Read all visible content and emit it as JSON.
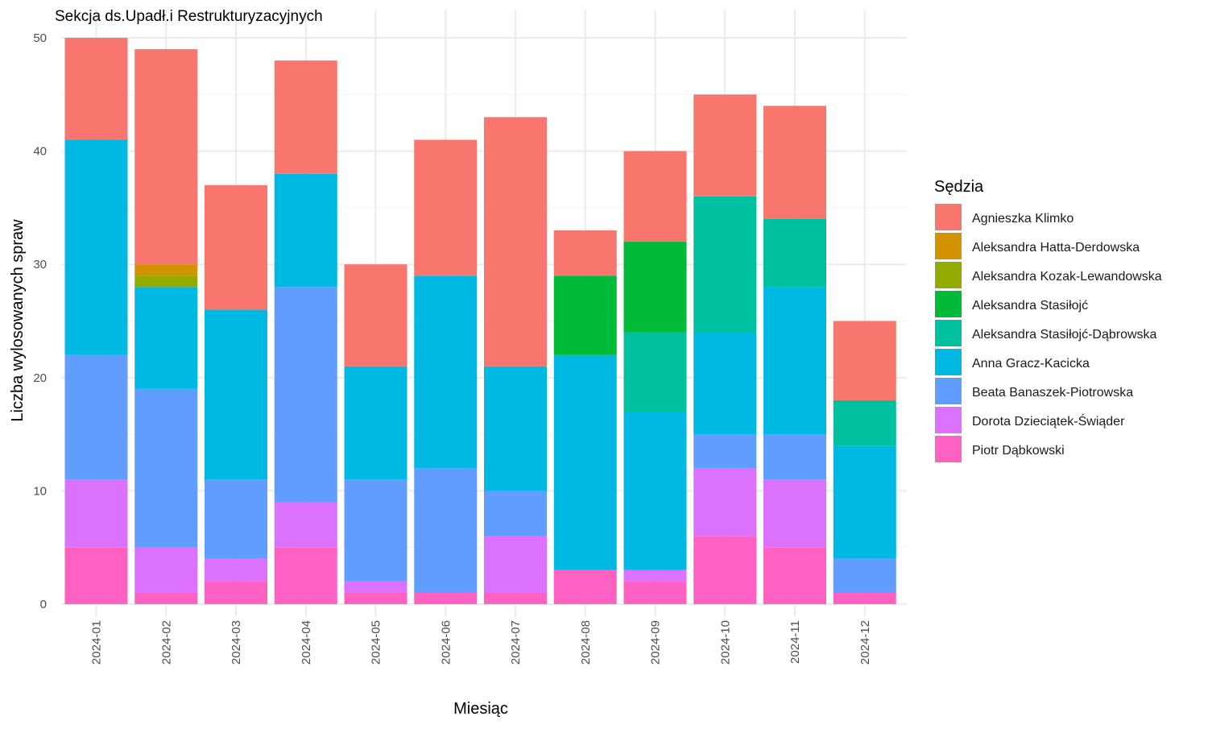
{
  "chart_data": {
    "type": "bar",
    "stacked": true,
    "title": "Sekcja ds.Upadł.i Restrukturyzacyjnych",
    "xlabel": "Miesiąc",
    "ylabel": "Liczba wylosowanych spraw",
    "ylim": [
      0,
      50
    ],
    "yticks": [
      "0",
      "10",
      "20",
      "30",
      "40",
      "50"
    ],
    "grid": true,
    "legend": {
      "title": "Sędzia",
      "placement": "right"
    },
    "categories": [
      "2024-01",
      "2024-02",
      "2024-03",
      "2024-04",
      "2024-05",
      "2024-06",
      "2024-07",
      "2024-08",
      "2024-09",
      "2024-10",
      "2024-11",
      "2024-12"
    ],
    "series": [
      {
        "name": "Piotr Dąbkowski",
        "color": "#FF61C3",
        "values": [
          5,
          1,
          2,
          5,
          1,
          1,
          1,
          3,
          2,
          6,
          5,
          1
        ]
      },
      {
        "name": "Dorota Dzieciątek-Świąder",
        "color": "#DB72FB",
        "values": [
          6,
          4,
          2,
          4,
          1,
          0,
          5,
          0,
          1,
          6,
          6,
          0
        ]
      },
      {
        "name": "Beata Banaszek-Piotrowska",
        "color": "#619CFF",
        "values": [
          11,
          14,
          7,
          19,
          9,
          11,
          4,
          0,
          0,
          3,
          4,
          3
        ]
      },
      {
        "name": "Anna Gracz-Kacicka",
        "color": "#00B9E3",
        "values": [
          19,
          9,
          15,
          10,
          10,
          17,
          11,
          19,
          14,
          9,
          13,
          10
        ]
      },
      {
        "name": "Aleksandra Stasiłojć-Dąbrowska",
        "color": "#00C19F",
        "values": [
          0,
          0,
          0,
          0,
          0,
          0,
          0,
          0,
          7,
          12,
          6,
          4
        ]
      },
      {
        "name": "Aleksandra Stasiłojć",
        "color": "#00BA38",
        "values": [
          0,
          0,
          0,
          0,
          0,
          0,
          0,
          7,
          8,
          0,
          0,
          0
        ]
      },
      {
        "name": "Aleksandra Kozak-Lewandowska",
        "color": "#93AA00",
        "values": [
          0,
          1,
          0,
          0,
          0,
          0,
          0,
          0,
          0,
          0,
          0,
          0
        ]
      },
      {
        "name": "Aleksandra Hatta-Derdowska",
        "color": "#D39200",
        "values": [
          0,
          1,
          0,
          0,
          0,
          0,
          0,
          0,
          0,
          0,
          0,
          0
        ]
      },
      {
        "name": "Agnieszka Klimko",
        "color": "#F8766D",
        "values": [
          9,
          19,
          11,
          10,
          9,
          12,
          22,
          4,
          8,
          9,
          10,
          7
        ]
      }
    ]
  }
}
